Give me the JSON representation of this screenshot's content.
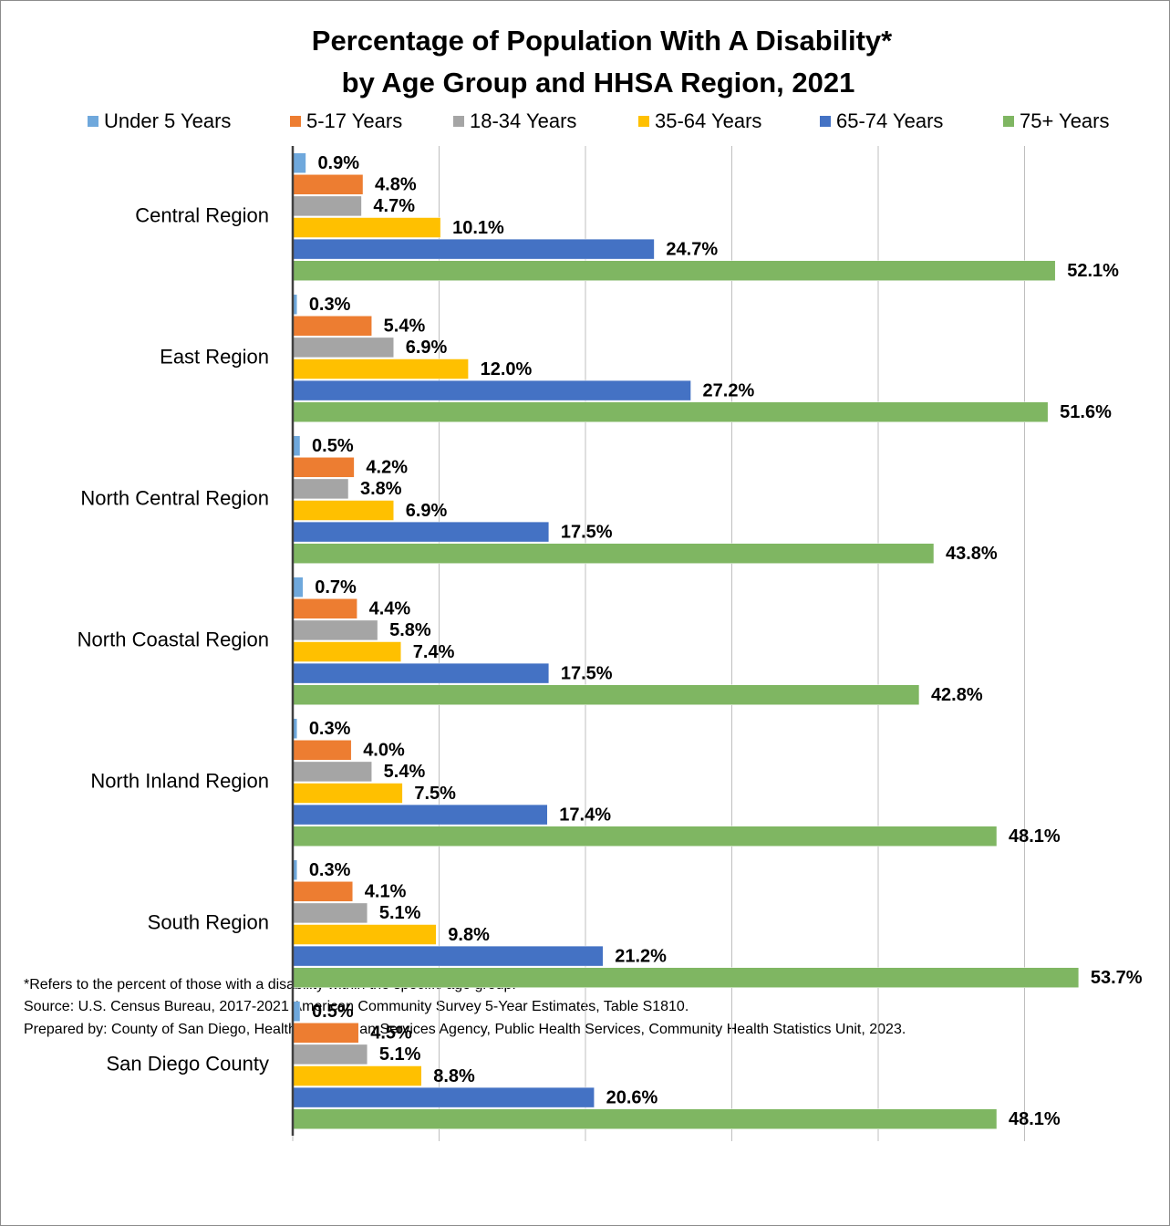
{
  "chart_data": {
    "type": "hbar",
    "title": [
      "Percentage of Population With A Disability*",
      "by Age Group and HHSA Region, 2021"
    ],
    "categories": [
      "Central Region",
      "East Region",
      "North Central Region",
      "North Coastal Region",
      "North Inland Region",
      "South Region",
      "San Diego County"
    ],
    "series": [
      {
        "name": "Under 5 Years",
        "color": "#6fa8dc",
        "values": [
          0.9,
          0.3,
          0.5,
          0.7,
          0.3,
          0.3,
          0.5
        ],
        "value_labels": [
          "0.9%",
          "0.3%",
          "0.5%",
          "0.7%",
          "0.3%",
          "0.3%",
          "0.5%"
        ]
      },
      {
        "name": "5-17 Years",
        "color": "#ed7d31",
        "values": [
          4.8,
          5.4,
          4.2,
          4.4,
          4.0,
          4.1,
          4.5
        ],
        "value_labels": [
          "4.8%",
          "5.4%",
          "4.2%",
          "4.4%",
          "4.0%",
          "4.1%",
          "4.5%"
        ]
      },
      {
        "name": "18-34 Years",
        "color": "#a5a5a5",
        "values": [
          4.7,
          6.9,
          3.8,
          5.8,
          5.4,
          5.1,
          5.1
        ],
        "value_labels": [
          "4.7%",
          "6.9%",
          "3.8%",
          "5.8%",
          "5.4%",
          "5.1%",
          "5.1%"
        ]
      },
      {
        "name": "35-64 Years",
        "color": "#ffc000",
        "values": [
          10.1,
          12.0,
          6.9,
          7.4,
          7.5,
          9.8,
          8.8
        ],
        "value_labels": [
          "10.1%",
          "12.0%",
          "6.9%",
          "7.4%",
          "7.5%",
          "9.8%",
          "8.8%"
        ]
      },
      {
        "name": "65-74 Years",
        "color": "#4472c4",
        "values": [
          24.7,
          27.2,
          17.5,
          17.5,
          17.4,
          21.2,
          20.6
        ],
        "value_labels": [
          "24.7%",
          "27.2%",
          "17.5%",
          "17.5%",
          "17.4%",
          "21.2%",
          "20.6%"
        ]
      },
      {
        "name": "75+ Years",
        "color": "#7fb662",
        "values": [
          52.1,
          51.6,
          43.8,
          42.8,
          48.1,
          53.7,
          48.1
        ],
        "value_labels": [
          "52.1%",
          "51.6%",
          "43.8%",
          "42.8%",
          "48.1%",
          "53.7%",
          "48.1%"
        ]
      }
    ],
    "xlim": [
      0,
      60
    ],
    "xticks": [
      0,
      10,
      20,
      30,
      40,
      50
    ],
    "grid": true,
    "legend": "top",
    "notes": [
      "*Refers to the percent of those with a disability within the specific age group.",
      "Source: U.S. Census Bureau, 2017-2021 American Community Survey 5-Year Estimates, Table S1810.",
      "Prepared by: County of San Diego, Health and Human Services Agency, Public Health Services, Community Health Statistics Unit, 2023."
    ]
  }
}
